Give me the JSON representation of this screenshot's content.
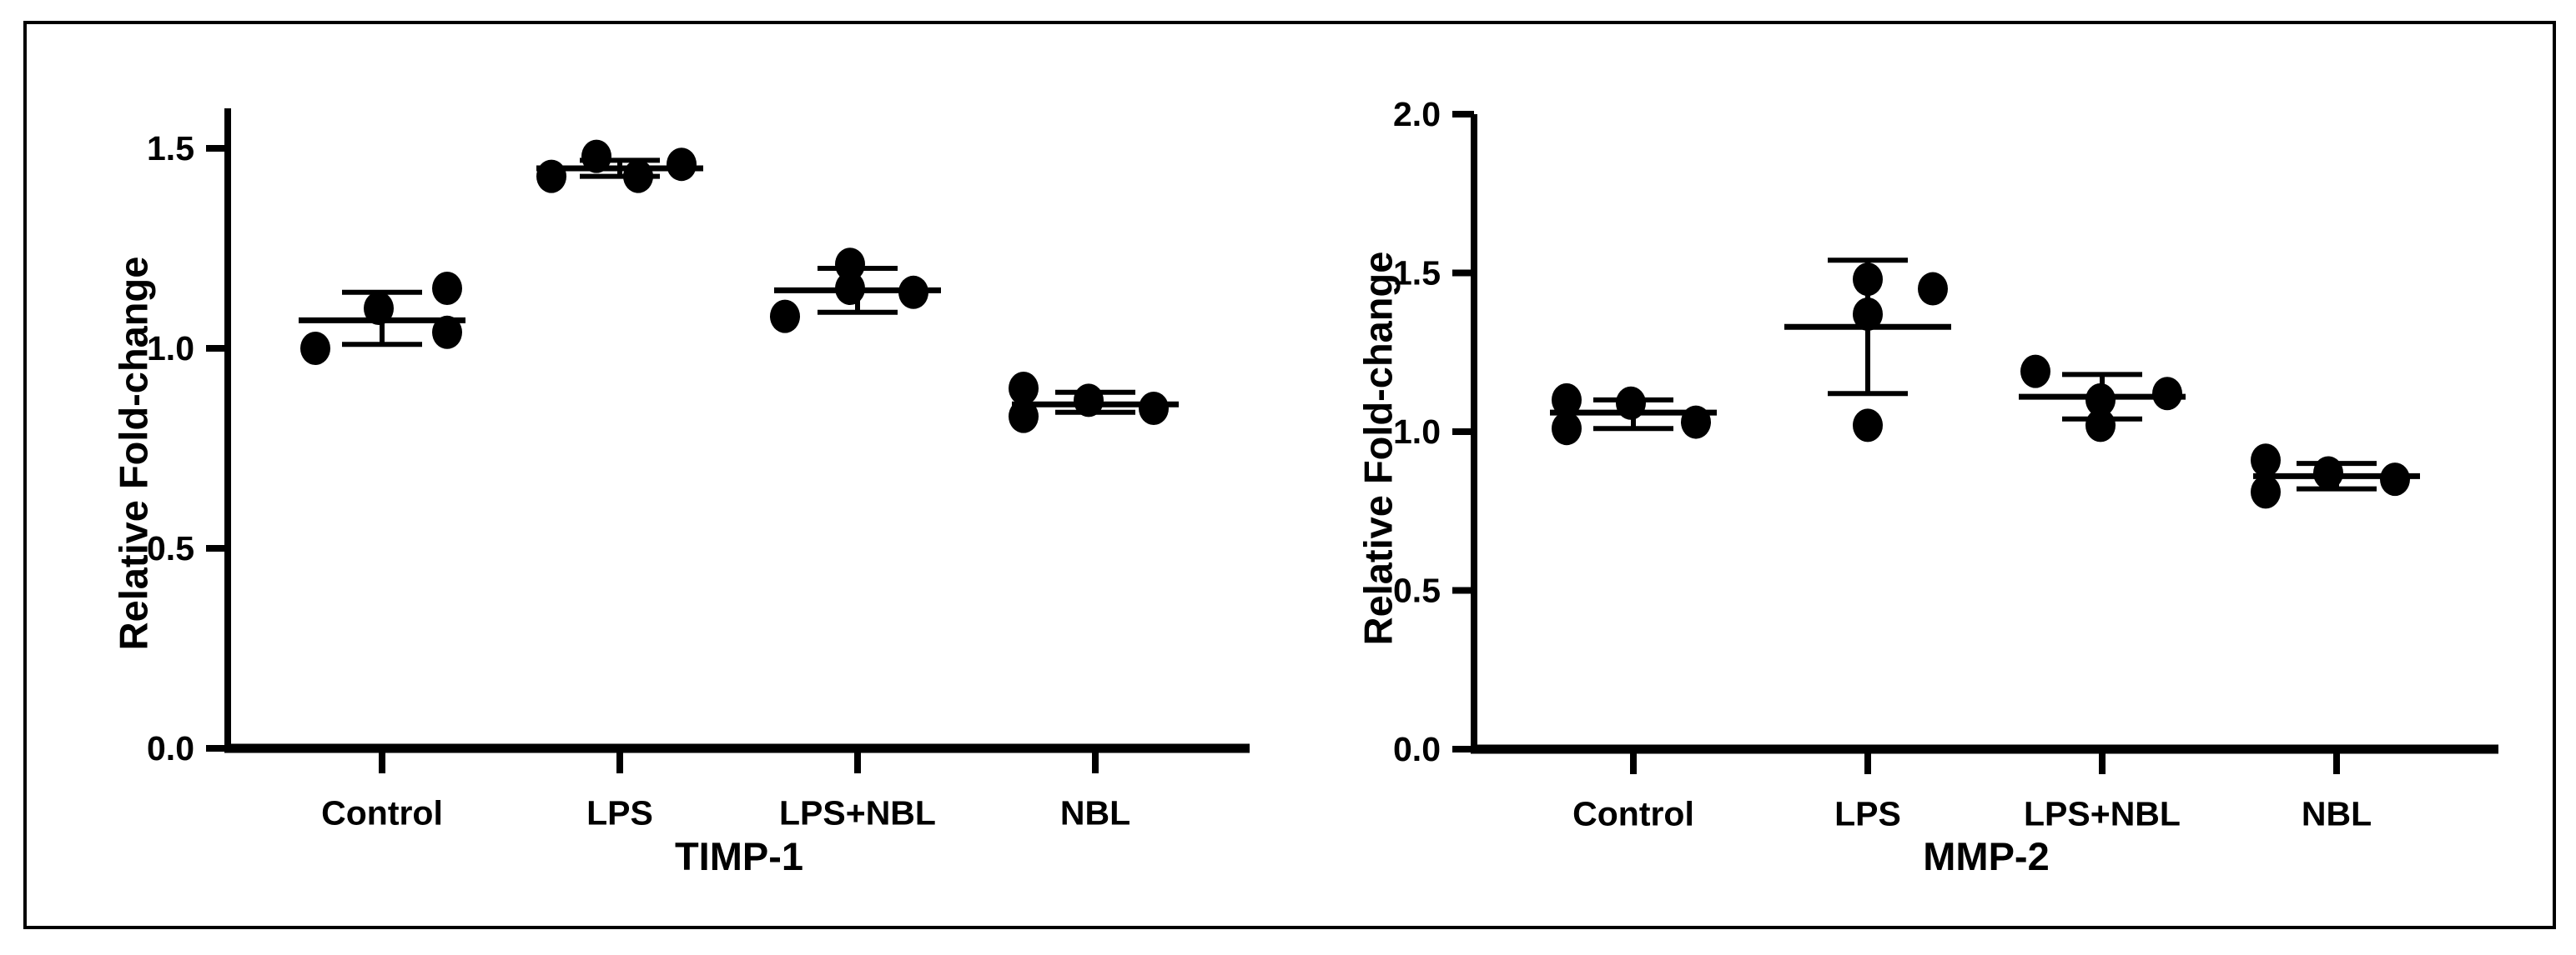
{
  "figure": {
    "background": "#ffffff",
    "border_color": "#000000",
    "ink_color": "#000000"
  },
  "chart_data": [
    {
      "type": "scatter",
      "title": "TIMP-1",
      "ylabel": "Relative Fold-change",
      "xlabel": "",
      "categories": [
        "Control",
        "LPS",
        "LPS+NBL",
        "NBL"
      ],
      "ylim": [
        0,
        1.6
      ],
      "yticks": [
        "0.0",
        "0.5",
        "1.0",
        "1.5"
      ],
      "grid": false,
      "legend": "none",
      "marker": "filled-black-circle",
      "error_bar_type": "mean-with-sd",
      "groups": [
        {
          "category": "Control",
          "values": [
            1.0,
            1.1,
            1.15,
            1.04
          ],
          "x_offsets": [
            -80,
            -4,
            78,
            78
          ],
          "mean": 1.07,
          "err_low": 1.01,
          "err_high": 1.14
        },
        {
          "category": "LPS",
          "values": [
            1.43,
            1.48,
            1.43,
            1.46
          ],
          "x_offsets": [
            -82,
            -28,
            22,
            74
          ],
          "mean": 1.45,
          "err_low": 1.43,
          "err_high": 1.47
        },
        {
          "category": "LPS+NBL",
          "values": [
            1.08,
            1.21,
            1.15,
            1.14
          ],
          "x_offsets": [
            -87,
            -9,
            -9,
            67
          ],
          "mean": 1.145,
          "err_low": 1.09,
          "err_high": 1.2
        },
        {
          "category": "NBL",
          "values": [
            0.9,
            0.83,
            0.87,
            0.85
          ],
          "x_offsets": [
            -86,
            -86,
            -8,
            70
          ],
          "mean": 0.86,
          "err_low": 0.84,
          "err_high": 0.89
        }
      ]
    },
    {
      "type": "scatter",
      "title": "MMP-2",
      "ylabel": "Relative Fold-change",
      "xlabel": "",
      "categories": [
        "Control",
        "LPS",
        "LPS+NBL",
        "NBL"
      ],
      "ylim": [
        0,
        2.0
      ],
      "yticks": [
        "0.0",
        "0.5",
        "1.0",
        "1.5",
        "2.0"
      ],
      "grid": false,
      "legend": "none",
      "marker": "filled-black-circle",
      "error_bar_type": "mean-with-sd",
      "groups": [
        {
          "category": "Control",
          "values": [
            1.1,
            1.01,
            1.09,
            1.03
          ],
          "x_offsets": [
            -80,
            -80,
            -3,
            75
          ],
          "mean": 1.06,
          "err_low": 1.01,
          "err_high": 1.1
        },
        {
          "category": "LPS",
          "values": [
            1.48,
            1.37,
            1.45,
            1.02
          ],
          "x_offsets": [
            0,
            0,
            78,
            0
          ],
          "mean": 1.33,
          "err_low": 1.12,
          "err_high": 1.54
        },
        {
          "category": "LPS+NBL",
          "values": [
            1.19,
            1.1,
            1.02,
            1.12
          ],
          "x_offsets": [
            -80,
            -2,
            -2,
            78
          ],
          "mean": 1.11,
          "err_low": 1.04,
          "err_high": 1.18
        },
        {
          "category": "NBL",
          "values": [
            0.91,
            0.81,
            0.87,
            0.85
          ],
          "x_offsets": [
            -85,
            -85,
            -10,
            70
          ],
          "mean": 0.86,
          "err_low": 0.82,
          "err_high": 0.9
        }
      ]
    }
  ]
}
